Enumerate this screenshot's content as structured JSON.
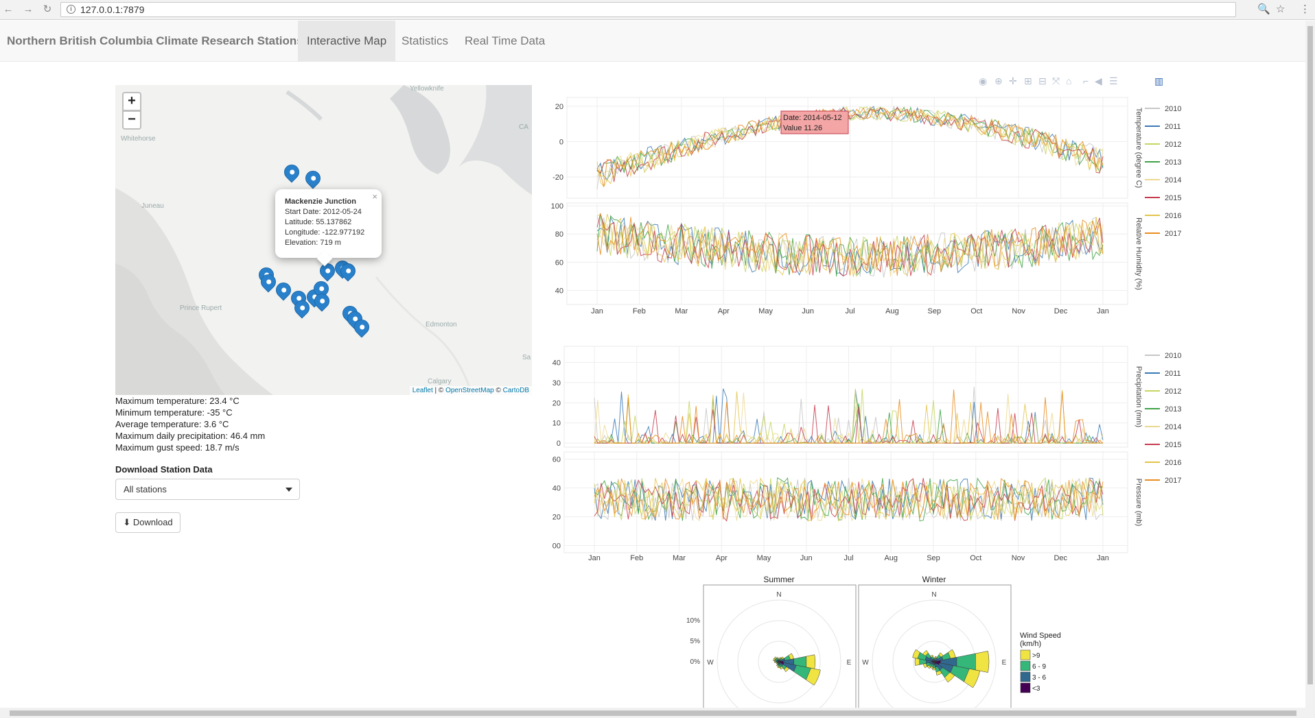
{
  "browser": {
    "url": "127.0.0.1:7879",
    "back": "←",
    "forward": "→",
    "reload": "↻",
    "zoom_icon": "🔍",
    "star_icon": "☆",
    "menu_icon": "⋮"
  },
  "nav": {
    "brand": "Northern British Columbia Climate Research Stations",
    "tabs": [
      {
        "label": "Interactive Map",
        "active": true
      },
      {
        "label": "Statistics"
      },
      {
        "label": "Real Time Data"
      }
    ]
  },
  "map": {
    "zoom_in": "+",
    "zoom_out": "−",
    "cities": [
      "Yellowknife",
      "Whitehorse",
      "Juneau",
      "Prince Rupert",
      "Edmonton",
      "Calgary",
      "CA",
      "Sa"
    ],
    "popup": {
      "title": "Mackenzie Junction",
      "start": "Start Date: 2012-05-24",
      "lat": "Latitude: 55.137862",
      "lon": "Longitude: -122.977192",
      "elev": "Elevation: 719 m",
      "close": "×"
    },
    "attribution": {
      "leaflet": "Leaflet",
      "sep": " | © ",
      "osm": "OpenStreetMap",
      "sep2": " © ",
      "carto": "CartoDB"
    }
  },
  "stats": [
    "Maximum temperature: 23.4 °C",
    "Minimum temperature: -35 °C",
    "Average temperature: 3.6 °C",
    "Maximum daily precipitation: 46.4 mm",
    "Maximum gust speed: 18.7 m/s"
  ],
  "download": {
    "heading": "Download Station Data",
    "select_value": "All stations",
    "button": "Download",
    "button_icon": "⬇"
  },
  "colors": {
    "2010": "#c6c6c6",
    "2011": "#3a79b5",
    "2012": "#c7d55f",
    "2013": "#3ea245",
    "2014": "#ecd88f",
    "2015": "#c53a4c",
    "2016": "#e2c44a",
    "2017": "#e98c20"
  },
  "chart_data": [
    {
      "type": "line",
      "months": [
        "Jan",
        "Feb",
        "Mar",
        "Apr",
        "May",
        "Jun",
        "Jul",
        "Aug",
        "Sep",
        "Oct",
        "Nov",
        "Dec",
        "Jan"
      ],
      "legend": [
        "2010",
        "2011",
        "2012",
        "2013",
        "2014",
        "2015",
        "2016",
        "2017"
      ],
      "panels": [
        {
          "ylabel": "Temperature (degree C)",
          "ticks": [
            20,
            0,
            -20
          ],
          "ylim": [
            -32,
            25
          ]
        },
        {
          "ylabel": "Relative Humidity (%)",
          "ticks": [
            100,
            80,
            60,
            40
          ],
          "ylim": [
            30,
            102
          ]
        }
      ],
      "tooltip": {
        "date": "Date: 2014-05-12",
        "value": "Value 11.26"
      }
    },
    {
      "type": "line",
      "months": [
        "Jan",
        "Feb",
        "Mar",
        "Apr",
        "May",
        "Jun",
        "Jul",
        "Aug",
        "Sep",
        "Oct",
        "Nov",
        "Dec",
        "Jan"
      ],
      "legend": [
        "2010",
        "2011",
        "2012",
        "2013",
        "2014",
        "2015",
        "2016",
        "2017"
      ],
      "panels": [
        {
          "ylabel": "Precipitation (mm)",
          "ticks": [
            40,
            30,
            20,
            10,
            0
          ],
          "ylim": [
            -2,
            48
          ]
        },
        {
          "ylabel": "Pressure (mb)",
          "ticks": [
            60,
            40,
            20,
            "00"
          ],
          "ylim": [
            -5,
            65
          ]
        }
      ]
    },
    {
      "type": "wind-rose",
      "facets": [
        "Summer",
        "Winter"
      ],
      "directions": [
        "N",
        "E",
        "W"
      ],
      "radial_ticks": [
        "10%",
        "5%",
        "0%"
      ],
      "legend_title": "Wind Speed\n(km/h)",
      "bins": [
        {
          "label": ">9",
          "color": "#f0e442"
        },
        {
          "label": "6 - 9",
          "color": "#35b779"
        },
        {
          "label": "3 - 6",
          "color": "#31688e"
        },
        {
          "label": "<3",
          "color": "#440154"
        }
      ]
    }
  ]
}
